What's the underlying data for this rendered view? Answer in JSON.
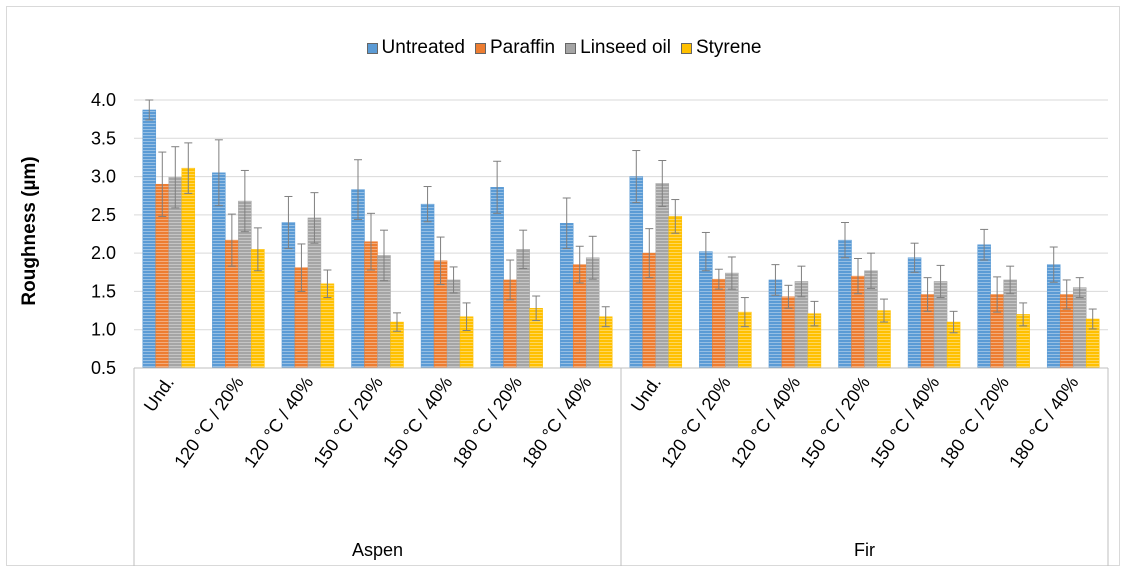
{
  "chart_data": {
    "type": "bar",
    "title": "",
    "xlabel": "",
    "ylabel": "Roughness (µm)",
    "ylim": [
      0.5,
      4.0
    ],
    "yticks": [
      "0.5",
      "1.0",
      "1.5",
      "2.0",
      "2.5",
      "3.0",
      "3.5",
      "4.0"
    ],
    "legend_position": "top",
    "grid": true,
    "groups": [
      {
        "label": "Aspen",
        "categories": [
          "Und.",
          "120 °C / 20%",
          "120 °C / 40%",
          "150 °C / 20%",
          "150 °C / 40%",
          "180 °C / 20%",
          "180 °C / 40%"
        ]
      },
      {
        "label": "Fir",
        "categories": [
          "Und.",
          "120 °C / 20%",
          "120 °C / 40%",
          "150 °C / 20%",
          "150 °C / 40%",
          "180 °C / 20%",
          "180 °C / 40%"
        ]
      }
    ],
    "series": [
      {
        "name": "Untreated",
        "color": "#5b9bd5",
        "values": [
          3.87,
          3.05,
          2.4,
          2.83,
          2.64,
          2.86,
          2.39,
          3.0,
          2.02,
          1.65,
          2.17,
          1.94,
          2.11,
          1.85
        ],
        "errors": [
          0.13,
          0.43,
          0.34,
          0.39,
          0.23,
          0.34,
          0.33,
          0.34,
          0.25,
          0.2,
          0.23,
          0.19,
          0.2,
          0.23
        ]
      },
      {
        "name": "Paraffin",
        "color": "#ed7d31",
        "values": [
          2.9,
          2.17,
          1.81,
          2.15,
          1.9,
          1.65,
          1.85,
          2.0,
          1.66,
          1.43,
          1.7,
          1.46,
          1.46,
          1.46
        ],
        "errors": [
          0.42,
          0.34,
          0.31,
          0.37,
          0.31,
          0.26,
          0.24,
          0.32,
          0.13,
          0.15,
          0.23,
          0.22,
          0.23,
          0.19
        ]
      },
      {
        "name": "Linseed oil",
        "color": "#a5a5a5",
        "values": [
          2.99,
          2.68,
          2.46,
          1.97,
          1.65,
          2.05,
          1.94,
          2.91,
          1.74,
          1.63,
          1.77,
          1.63,
          1.65,
          1.55
        ],
        "errors": [
          0.4,
          0.4,
          0.33,
          0.33,
          0.17,
          0.25,
          0.28,
          0.3,
          0.21,
          0.2,
          0.23,
          0.21,
          0.18,
          0.13
        ]
      },
      {
        "name": "Styrene",
        "color": "#ffc000",
        "values": [
          3.11,
          2.05,
          1.6,
          1.1,
          1.17,
          1.28,
          1.17,
          2.48,
          1.23,
          1.21,
          1.25,
          1.1,
          1.2,
          1.14
        ],
        "errors": [
          0.33,
          0.28,
          0.18,
          0.12,
          0.18,
          0.16,
          0.13,
          0.22,
          0.19,
          0.16,
          0.15,
          0.14,
          0.15,
          0.13
        ]
      }
    ]
  }
}
